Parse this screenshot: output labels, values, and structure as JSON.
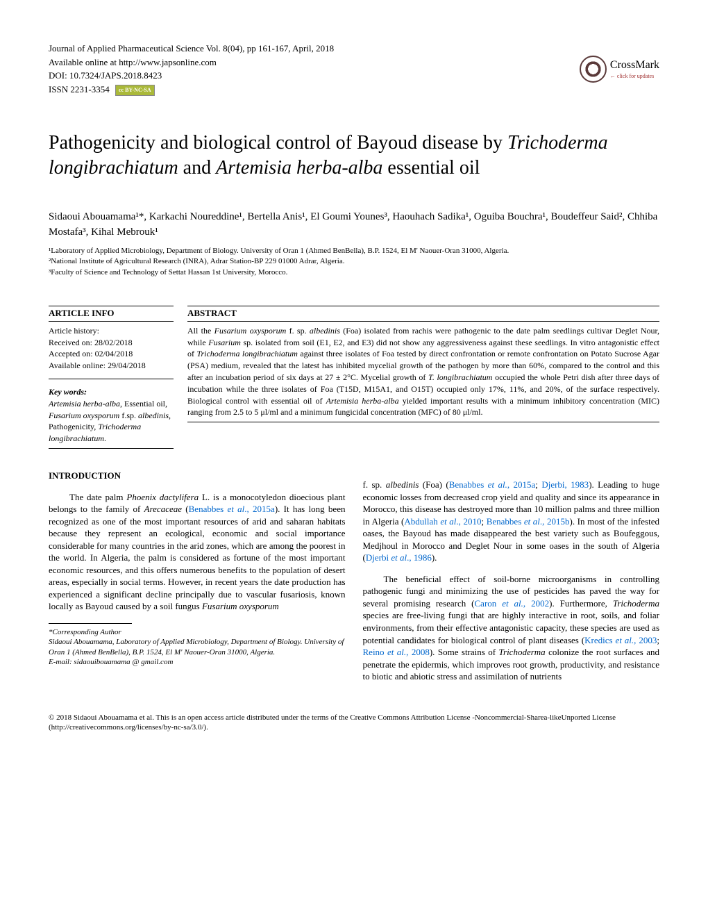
{
  "header": {
    "journal_line": "Journal of Applied Pharmaceutical Science Vol. 8(04), pp 161-167, April, 2018",
    "available_line": "Available online at http://www.japsonline.com",
    "doi_line": "DOI: 10.7324/JAPS.2018.8423",
    "issn_line": "ISSN 2231-3354",
    "cc_badge": "cc BY-NC-SA",
    "crossmark_label": "CrossMark",
    "crossmark_sub": "← click for updates"
  },
  "title": {
    "part1": "Pathogenicity and biological control of Bayoud disease by ",
    "part2_italic": "Trichoderma longibrachiatum",
    "part3": " and ",
    "part4_italic": "Artemisia herba-alba",
    "part5": " essential oil"
  },
  "authors": "Sidaoui Abouamama¹*, Karkachi Noureddine¹, Bertella Anis¹, El Goumi Younes³, Haouhach Sadika¹, Oguiba Bouchra¹, Boudeffeur Said², Chhiba Mostafa³, Kihal Mebrouk¹",
  "affiliations": {
    "a1": "¹Laboratory of Applied Microbiology, Department of Biology. University of Oran 1 (Ahmed BenBella), B.P. 1524, El M' Naouer-Oran 31000, Algeria.",
    "a2": "²National Institute of Agricultural Research (INRA), Adrar Station-BP 229 01000 Adrar, Algeria.",
    "a3": "³Faculty of Science and Technology of Settat Hassan 1st University, Morocco."
  },
  "article_info": {
    "header": "ARTICLE INFO",
    "history_label": "Article history:",
    "received": "Received on: 28/02/2018",
    "accepted": "Accepted on: 02/04/2018",
    "online": "Available online: 29/04/2018",
    "keywords_label": "Key words:",
    "keywords_html": "Artemisia herba-alba, Essential oil, Fusarium oxysporum f.sp. albedinis, Pathogenicity, Trichoderma longibrachiatum."
  },
  "abstract": {
    "header": "ABSTRACT",
    "text": "All the Fusarium oxysporum f. sp. albedinis (Foa) isolated from rachis were pathogenic to the date palm seedlings cultivar Deglet Nour, while Fusarium sp. isolated from soil (E1, E2, and E3) did not show any aggressiveness against these seedlings. In vitro antagonistic effect of Trichoderma longibrachiatum against three isolates of Foa tested by direct confrontation or remote confrontation on Potato Sucrose Agar (PSA) medium, revealed that the latest has inhibited mycelial growth of the pathogen by more than 60%, compared to the control and this after an incubation period of six days at 27 ± 2°C. Mycelial growth of T. longibrachiatum occupied the whole Petri dish after three days of incubation while the three isolates of Foa (T15D, M15A1, and O15T) occupied only 17%, 11%, and 20%, of the surface respectively. Biological control with essential oil of Artemisia herba-alba yielded important results with a minimum inhibitory concentration (MIC) ranging from 2.5 to 5 μl/ml and a minimum fungicidal concentration (MFC) of 80 μl/ml."
  },
  "introduction": {
    "header": "INTRODUCTION",
    "col1_para1": "The date palm Phoenix dactylifera L. is a monocotyledon dioecious plant belongs to the family of Arecaceae (Benabbes et al., 2015a). It has long been recognized as one of the most important resources of arid and saharan habitats because they represent an ecological, economic and social importance considerable for many countries in the arid zones, which are among the poorest in the world. In Algeria, the palm is considered as fortune of the most important economic resources, and this offers numerous benefits to the population of desert areas, especially in social terms. However, in recent years the date production has experienced a significant decline principally due to vascular fusariosis, known locally as Bayoud caused by a soil fungus Fusarium oxysporum",
    "col2_para1": "f. sp. albedinis (Foa) (Benabbes et al., 2015a; Djerbi, 1983). Leading to huge economic losses from decreased crop yield and quality and since its appearance in Morocco, this disease has destroyed more than 10 million palms and three million in Algeria (Abdullah et al., 2010; Benabbes et al., 2015b). In most of the infested oases, the Bayoud has made disappeared the best variety such as Boufeggous, Medjhoul in Morocco and Deglet Nour in some oases in the south of Algeria (Djerbi et al., 1986).",
    "col2_para2": "The beneficial effect of soil-borne microorganisms in controlling pathogenic fungi and minimizing the use of pesticides has paved the way for several promising research (Caron et al., 2002). Furthermore, Trichoderma species are free-living fungi that are highly interactive in root, soils, and foliar environments, from their effective antagonistic capacity, these species are used as potential candidates for biological control of plant diseases (Kredics et al., 2003; Reino et al., 2008). Some strains of Trichoderma colonize the root surfaces and penetrate the epidermis, which improves root growth, productivity, and resistance to biotic and abiotic stress and assimilation of nutrients"
  },
  "footnote": {
    "label": "*Corresponding Author",
    "text": "Sidaoui Abouamama, Laboratory of Applied Microbiology, Department of Biology. University of Oran 1 (Ahmed BenBella), B.P. 1524, El M' Naouer-Oran 31000, Algeria.",
    "email": "E-mail: sidaouibouamama @ gmail.com"
  },
  "copyright": "© 2018 Sidaoui Abouamama et al. This is an open access article distributed under the terms of the Creative Commons Attribution License -Noncommercial-Sharea-likeUnported License (http://creativecommons.org/licenses/by-nc-sa/3.0/)."
}
